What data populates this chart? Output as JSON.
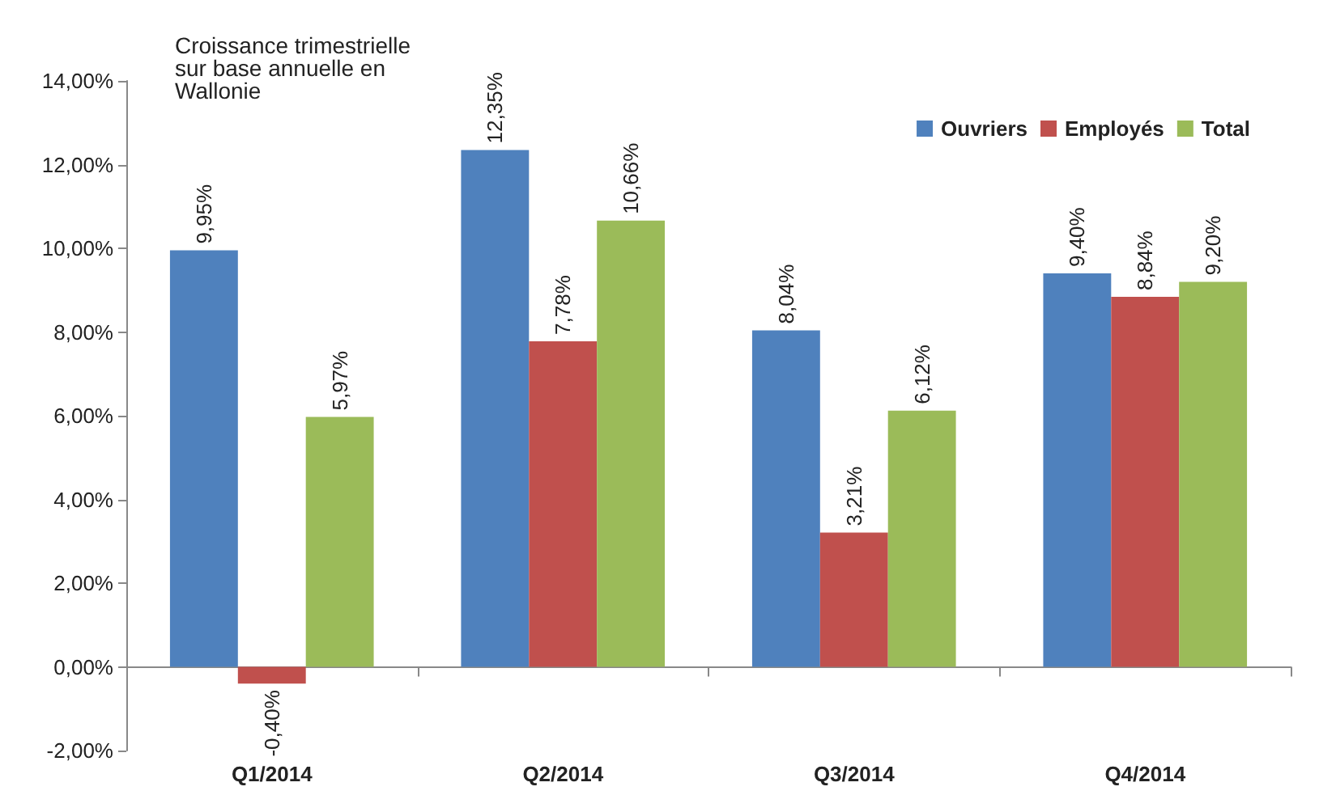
{
  "chart_data": {
    "type": "bar",
    "title": "Croissance trimestrielle sur base annuelle en Wallonie",
    "categories": [
      "Q1/2014",
      "Q2/2014",
      "Q3/2014",
      "Q4/2014"
    ],
    "series": [
      {
        "name": "Ouvriers",
        "color": "#4f81bd",
        "values": [
          9.95,
          12.35,
          8.04,
          9.4
        ],
        "value_labels": [
          "9,95%",
          "12,35%",
          "8,04%",
          "9,40%"
        ]
      },
      {
        "name": "Employés",
        "color": "#c0504d",
        "values": [
          -0.4,
          7.78,
          3.21,
          8.84
        ],
        "value_labels": [
          "-0,40%",
          "7,78%",
          "3,21%",
          "8,84%"
        ]
      },
      {
        "name": "Total",
        "color": "#9bbb59",
        "values": [
          5.97,
          10.66,
          6.12,
          9.2
        ],
        "value_labels": [
          "5,97%",
          "10,66%",
          "6,12%",
          "9,20%"
        ]
      }
    ],
    "ylim": [
      -2,
      14
    ],
    "yticks": [
      {
        "value": -2,
        "label": "-2,00%"
      },
      {
        "value": 0,
        "label": "0,00%"
      },
      {
        "value": 2,
        "label": "2,00%"
      },
      {
        "value": 4,
        "label": "4,00%"
      },
      {
        "value": 6,
        "label": "6,00%"
      },
      {
        "value": 8,
        "label": "8,00%"
      },
      {
        "value": 10,
        "label": "10,00%"
      },
      {
        "value": 12,
        "label": "12,00%"
      },
      {
        "value": 14,
        "label": "14,00%"
      }
    ],
    "legend": "top right"
  }
}
